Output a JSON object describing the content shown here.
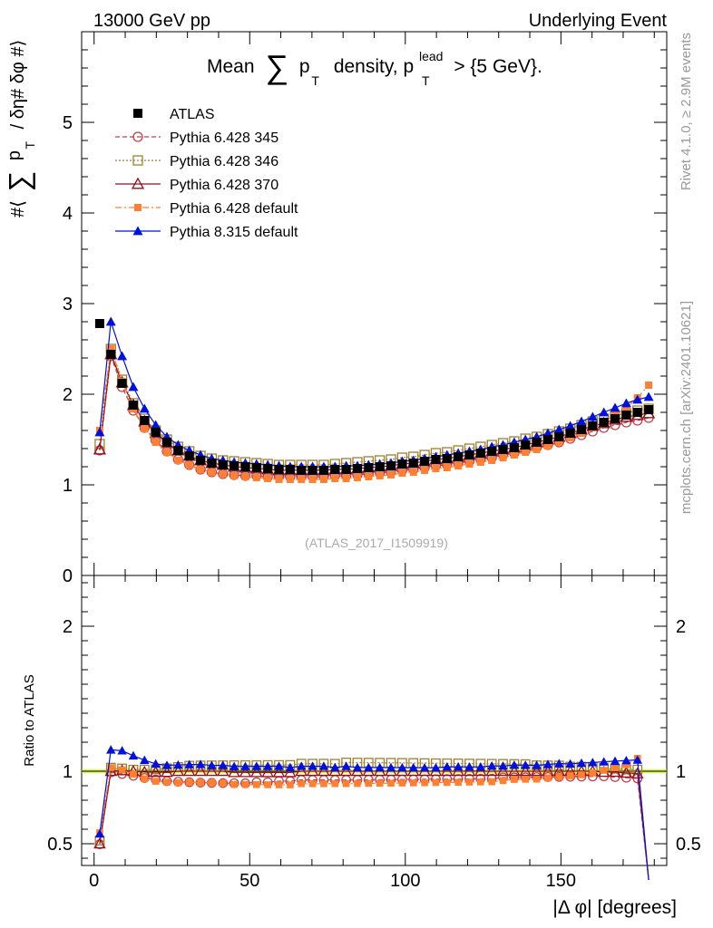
{
  "header": {
    "left": "13000 GeV pp",
    "right": "Underlying Event"
  },
  "side": {
    "rivet": "Rivet 4.1.0, ≥ 2.9M events",
    "mcplots": "mcplots.cern.ch [arXiv:2401.10621]"
  },
  "colors": {
    "atlas": "#000000",
    "p345": "#c0404a",
    "p346": "#a08030",
    "p370": "#901020",
    "pdef": "#ff8030",
    "p8": "#0010e0",
    "band": "#c8f000"
  },
  "chart_data": [
    {
      "type": "line",
      "title": "Mean ∑ p_T density, p_T^lead > {5 GeV}.",
      "title_parts": {
        "pre": "Mean",
        "sum": "∑",
        "p": "p",
        "sub": "T",
        "mid": "density, p",
        "sup": "lead",
        "post": "> {5 GeV}."
      },
      "ylabel": "#⟨ ∑ p_T / δη# δφ #⟩",
      "ylabel_parts": {
        "pre": "#⟨",
        "sum": "∑",
        "p": "p",
        "sub": "T",
        "post": "/ δη# δφ #⟩"
      },
      "xlim": [
        -4,
        184
      ],
      "ylim": [
        0,
        6
      ],
      "yticks": [
        0,
        1,
        2,
        3,
        4,
        5
      ],
      "watermark": "(ATLAS_2017_I1509919)",
      "legend_position": "top-left",
      "x": [
        1.8,
        5.4,
        9,
        12.6,
        16.2,
        19.8,
        23.4,
        27,
        30.6,
        34.2,
        37.8,
        41.4,
        45,
        48.6,
        52.2,
        55.8,
        59.4,
        63,
        66.6,
        70.2,
        73.8,
        77.4,
        81,
        84.6,
        88.2,
        91.8,
        95.4,
        99,
        102.6,
        106.2,
        109.8,
        113.4,
        117,
        120.6,
        124.2,
        127.8,
        131.4,
        135,
        138.6,
        142.2,
        145.8,
        149.4,
        153,
        156.6,
        160.2,
        163.8,
        167.4,
        171,
        174.6,
        178.2
      ],
      "series": [
        {
          "name": "ATLAS",
          "key": "atlas",
          "values": [
            2.78,
            2.44,
            2.12,
            1.88,
            1.71,
            1.58,
            1.47,
            1.38,
            1.32,
            1.27,
            1.24,
            1.22,
            1.21,
            1.2,
            1.19,
            1.18,
            1.17,
            1.17,
            1.16,
            1.16,
            1.16,
            1.17,
            1.17,
            1.18,
            1.19,
            1.2,
            1.21,
            1.23,
            1.24,
            1.26,
            1.28,
            1.29,
            1.31,
            1.33,
            1.35,
            1.37,
            1.39,
            1.41,
            1.44,
            1.47,
            1.5,
            1.53,
            1.57,
            1.61,
            1.65,
            1.69,
            1.73,
            1.77,
            1.8,
            1.83
          ]
        },
        {
          "name": "Pythia 6.428 345",
          "key": "p345",
          "values": [
            1.38,
            2.42,
            2.08,
            1.82,
            1.63,
            1.49,
            1.37,
            1.28,
            1.22,
            1.17,
            1.14,
            1.12,
            1.11,
            1.1,
            1.1,
            1.09,
            1.09,
            1.09,
            1.09,
            1.09,
            1.09,
            1.1,
            1.1,
            1.11,
            1.12,
            1.13,
            1.14,
            1.16,
            1.17,
            1.19,
            1.21,
            1.22,
            1.24,
            1.26,
            1.28,
            1.3,
            1.33,
            1.35,
            1.38,
            1.41,
            1.44,
            1.47,
            1.51,
            1.55,
            1.59,
            1.63,
            1.66,
            1.69,
            1.71,
            1.74
          ]
        },
        {
          "name": "Pythia 6.428 346",
          "key": "p346",
          "values": [
            1.45,
            2.5,
            2.16,
            1.9,
            1.73,
            1.6,
            1.5,
            1.42,
            1.37,
            1.32,
            1.29,
            1.27,
            1.26,
            1.25,
            1.24,
            1.23,
            1.22,
            1.22,
            1.22,
            1.22,
            1.22,
            1.23,
            1.24,
            1.25,
            1.26,
            1.27,
            1.28,
            1.3,
            1.31,
            1.33,
            1.35,
            1.36,
            1.38,
            1.4,
            1.42,
            1.44,
            1.46,
            1.48,
            1.51,
            1.53,
            1.56,
            1.59,
            1.62,
            1.66,
            1.7,
            1.73,
            1.76,
            1.79,
            1.82,
            1.84
          ]
        },
        {
          "name": "Pythia 6.428 370",
          "key": "p370",
          "values": [
            1.39,
            2.44,
            2.13,
            1.88,
            1.7,
            1.57,
            1.46,
            1.38,
            1.32,
            1.27,
            1.24,
            1.22,
            1.2,
            1.19,
            1.18,
            1.17,
            1.16,
            1.16,
            1.16,
            1.16,
            1.16,
            1.17,
            1.17,
            1.18,
            1.19,
            1.2,
            1.21,
            1.23,
            1.24,
            1.26,
            1.28,
            1.29,
            1.31,
            1.33,
            1.35,
            1.37,
            1.39,
            1.41,
            1.44,
            1.47,
            1.5,
            1.53,
            1.57,
            1.61,
            1.65,
            1.68,
            1.72,
            1.75,
            1.77,
            1.79
          ]
        },
        {
          "name": "Pythia 6.428 default",
          "key": "pdef",
          "values": [
            1.6,
            2.5,
            2.14,
            1.84,
            1.62,
            1.47,
            1.36,
            1.27,
            1.22,
            1.17,
            1.14,
            1.12,
            1.1,
            1.09,
            1.08,
            1.07,
            1.06,
            1.06,
            1.06,
            1.06,
            1.06,
            1.07,
            1.07,
            1.08,
            1.09,
            1.1,
            1.11,
            1.13,
            1.14,
            1.16,
            1.18,
            1.19,
            1.21,
            1.23,
            1.25,
            1.27,
            1.3,
            1.33,
            1.36,
            1.39,
            1.43,
            1.47,
            1.52,
            1.57,
            1.63,
            1.7,
            1.77,
            1.85,
            1.96,
            2.1
          ]
        },
        {
          "name": "Pythia 8.315 default",
          "key": "p8",
          "values": [
            1.58,
            2.8,
            2.42,
            2.08,
            1.84,
            1.66,
            1.53,
            1.44,
            1.38,
            1.33,
            1.29,
            1.27,
            1.25,
            1.24,
            1.23,
            1.22,
            1.21,
            1.2,
            1.2,
            1.2,
            1.2,
            1.2,
            1.21,
            1.21,
            1.22,
            1.23,
            1.24,
            1.26,
            1.27,
            1.29,
            1.31,
            1.33,
            1.35,
            1.37,
            1.39,
            1.42,
            1.44,
            1.47,
            1.5,
            1.53,
            1.57,
            1.61,
            1.65,
            1.7,
            1.75,
            1.8,
            1.85,
            1.9,
            1.94,
            1.97
          ]
        }
      ]
    },
    {
      "type": "line",
      "title": "",
      "ylabel": "Ratio to ATLAS",
      "xlabel": "|Δ φ| [degrees]",
      "xlim": [
        -4,
        184
      ],
      "ylim": [
        0.35,
        2.35
      ],
      "yticks": [
        0.5,
        1,
        2
      ],
      "xticks": [
        0,
        50,
        100,
        150
      ],
      "reference_band": [
        0.985,
        1.015
      ],
      "note": "ratio of each model series to the ATLAS data, last ATLAS model point drops below 0.35"
    }
  ]
}
